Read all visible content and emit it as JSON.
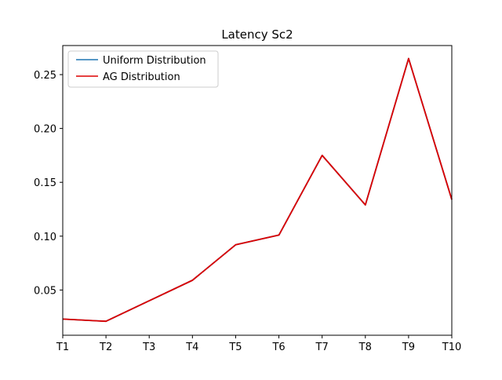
{
  "chart_data": {
    "type": "line",
    "title": "Latency Sc2",
    "xlabel": "",
    "ylabel": "",
    "categories": [
      "T1",
      "T2",
      "T3",
      "T4",
      "T5",
      "T6",
      "T7",
      "T8",
      "T9",
      "T10"
    ],
    "y_ticks": [
      "0.05",
      "0.10",
      "0.15",
      "0.20",
      "0.25"
    ],
    "ylim": [
      0.008,
      0.277
    ],
    "grid": false,
    "legend_position": "top-left",
    "series": [
      {
        "name": "Uniform Distribution",
        "color": "#1f77b4",
        "values": [
          0.023,
          0.021,
          0.04,
          0.059,
          0.092,
          0.101,
          0.175,
          0.129,
          0.265,
          0.134
        ]
      },
      {
        "name": "AG Distribution",
        "color": "#dd0000",
        "values": [
          0.023,
          0.021,
          0.04,
          0.059,
          0.092,
          0.101,
          0.175,
          0.129,
          0.265,
          0.134
        ]
      }
    ]
  }
}
